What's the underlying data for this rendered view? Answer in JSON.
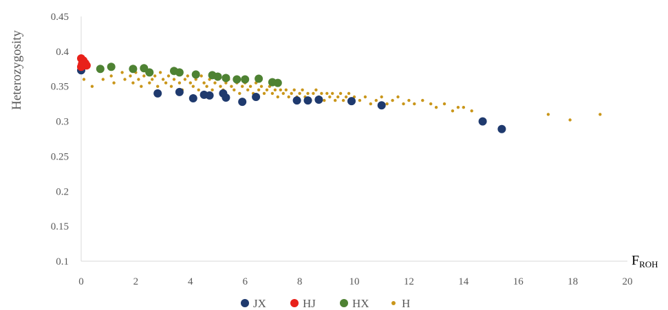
{
  "chart_data": {
    "type": "scatter",
    "title": "",
    "ylabel": "Heterozygosity",
    "xlabel": {
      "main": "F",
      "sub": "ROH"
    },
    "xlim": [
      0,
      20
    ],
    "ylim": [
      0.1,
      0.45
    ],
    "xticks": [
      "0",
      "2",
      "4",
      "6",
      "8",
      "10",
      "12",
      "14",
      "16",
      "18",
      "20"
    ],
    "yticks": [
      "0.1",
      "0.15",
      "0.2",
      "0.25",
      "0.3",
      "0.35",
      "0.4",
      "0.45"
    ],
    "grid": false,
    "legend_position": "bottom",
    "series": [
      {
        "name": "H",
        "color": "#c9961a",
        "marker": "small",
        "points": [
          [
            0.1,
            0.36
          ],
          [
            0.4,
            0.35
          ],
          [
            0.8,
            0.36
          ],
          [
            1.1,
            0.365
          ],
          [
            1.2,
            0.355
          ],
          [
            1.5,
            0.37
          ],
          [
            1.6,
            0.36
          ],
          [
            1.8,
            0.365
          ],
          [
            1.9,
            0.355
          ],
          [
            2.0,
            0.37
          ],
          [
            2.1,
            0.36
          ],
          [
            2.2,
            0.35
          ],
          [
            2.3,
            0.365
          ],
          [
            2.4,
            0.37
          ],
          [
            2.5,
            0.355
          ],
          [
            2.6,
            0.36
          ],
          [
            2.7,
            0.365
          ],
          [
            2.8,
            0.35
          ],
          [
            2.9,
            0.37
          ],
          [
            3.0,
            0.36
          ],
          [
            3.1,
            0.355
          ],
          [
            3.2,
            0.365
          ],
          [
            3.3,
            0.35
          ],
          [
            3.4,
            0.36
          ],
          [
            3.5,
            0.37
          ],
          [
            3.6,
            0.355
          ],
          [
            3.7,
            0.345
          ],
          [
            3.8,
            0.36
          ],
          [
            3.9,
            0.365
          ],
          [
            4.0,
            0.355
          ],
          [
            4.1,
            0.35
          ],
          [
            4.2,
            0.36
          ],
          [
            4.3,
            0.345
          ],
          [
            4.4,
            0.365
          ],
          [
            4.5,
            0.355
          ],
          [
            4.6,
            0.35
          ],
          [
            4.7,
            0.36
          ],
          [
            4.8,
            0.345
          ],
          [
            4.9,
            0.355
          ],
          [
            5.0,
            0.36
          ],
          [
            5.1,
            0.35
          ],
          [
            5.2,
            0.345
          ],
          [
            5.3,
            0.355
          ],
          [
            5.4,
            0.36
          ],
          [
            5.5,
            0.35
          ],
          [
            5.6,
            0.345
          ],
          [
            5.7,
            0.355
          ],
          [
            5.8,
            0.34
          ],
          [
            5.9,
            0.35
          ],
          [
            6.0,
            0.355
          ],
          [
            6.1,
            0.345
          ],
          [
            6.2,
            0.35
          ],
          [
            6.3,
            0.34
          ],
          [
            6.4,
            0.355
          ],
          [
            6.5,
            0.345
          ],
          [
            6.6,
            0.35
          ],
          [
            6.7,
            0.34
          ],
          [
            6.8,
            0.345
          ],
          [
            6.9,
            0.35
          ],
          [
            7.0,
            0.34
          ],
          [
            7.1,
            0.345
          ],
          [
            7.2,
            0.335
          ],
          [
            7.3,
            0.345
          ],
          [
            7.4,
            0.34
          ],
          [
            7.5,
            0.345
          ],
          [
            7.6,
            0.335
          ],
          [
            7.7,
            0.34
          ],
          [
            7.8,
            0.345
          ],
          [
            7.9,
            0.335
          ],
          [
            8.0,
            0.34
          ],
          [
            8.1,
            0.345
          ],
          [
            8.2,
            0.335
          ],
          [
            8.3,
            0.34
          ],
          [
            8.4,
            0.33
          ],
          [
            8.5,
            0.34
          ],
          [
            8.6,
            0.345
          ],
          [
            8.7,
            0.335
          ],
          [
            8.8,
            0.34
          ],
          [
            8.9,
            0.33
          ],
          [
            9.0,
            0.34
          ],
          [
            9.1,
            0.335
          ],
          [
            9.2,
            0.34
          ],
          [
            9.3,
            0.33
          ],
          [
            9.4,
            0.335
          ],
          [
            9.5,
            0.34
          ],
          [
            9.6,
            0.33
          ],
          [
            9.7,
            0.335
          ],
          [
            9.8,
            0.34
          ],
          [
            9.9,
            0.33
          ],
          [
            10.0,
            0.335
          ],
          [
            10.2,
            0.33
          ],
          [
            10.4,
            0.335
          ],
          [
            10.6,
            0.325
          ],
          [
            10.8,
            0.33
          ],
          [
            11.0,
            0.335
          ],
          [
            11.2,
            0.325
          ],
          [
            11.4,
            0.33
          ],
          [
            11.6,
            0.335
          ],
          [
            11.8,
            0.325
          ],
          [
            12.0,
            0.33
          ],
          [
            12.2,
            0.325
          ],
          [
            12.5,
            0.33
          ],
          [
            12.8,
            0.325
          ],
          [
            13.0,
            0.32
          ],
          [
            13.3,
            0.325
          ],
          [
            13.6,
            0.315
          ],
          [
            13.8,
            0.32
          ],
          [
            14.0,
            0.32
          ],
          [
            14.3,
            0.315
          ],
          [
            17.1,
            0.31
          ],
          [
            17.9,
            0.302
          ],
          [
            19.0,
            0.31
          ]
        ]
      },
      {
        "name": "HX",
        "color": "#4e8233",
        "marker": "large",
        "points": [
          [
            0.7,
            0.375
          ],
          [
            1.1,
            0.378
          ],
          [
            1.9,
            0.375
          ],
          [
            2.3,
            0.376
          ],
          [
            2.5,
            0.37
          ],
          [
            3.4,
            0.372
          ],
          [
            3.6,
            0.37
          ],
          [
            4.2,
            0.367
          ],
          [
            4.8,
            0.366
          ],
          [
            5.0,
            0.364
          ],
          [
            5.3,
            0.362
          ],
          [
            5.7,
            0.36
          ],
          [
            6.0,
            0.36
          ],
          [
            6.5,
            0.361
          ],
          [
            7.0,
            0.356
          ],
          [
            7.2,
            0.355
          ]
        ]
      },
      {
        "name": "JX",
        "color": "#1f3a6e",
        "marker": "large",
        "points": [
          [
            0.0,
            0.373
          ],
          [
            2.8,
            0.34
          ],
          [
            3.6,
            0.342
          ],
          [
            4.1,
            0.333
          ],
          [
            4.5,
            0.338
          ],
          [
            4.7,
            0.337
          ],
          [
            5.2,
            0.34
          ],
          [
            5.3,
            0.334
          ],
          [
            5.9,
            0.328
          ],
          [
            6.4,
            0.335
          ],
          [
            7.9,
            0.33
          ],
          [
            8.3,
            0.33
          ],
          [
            8.7,
            0.331
          ],
          [
            9.9,
            0.329
          ],
          [
            11.0,
            0.323
          ],
          [
            14.7,
            0.3
          ],
          [
            15.4,
            0.289
          ]
        ]
      },
      {
        "name": "HJ",
        "color": "#e8211a",
        "marker": "large",
        "points": [
          [
            0.0,
            0.39
          ],
          [
            0.05,
            0.385
          ],
          [
            0.1,
            0.38
          ],
          [
            0.0,
            0.378
          ],
          [
            0.15,
            0.383
          ],
          [
            0.08,
            0.387
          ],
          [
            0.2,
            0.38
          ],
          [
            0.03,
            0.382
          ]
        ]
      }
    ],
    "legend_order": [
      "JX",
      "HJ",
      "HX",
      "H"
    ]
  }
}
